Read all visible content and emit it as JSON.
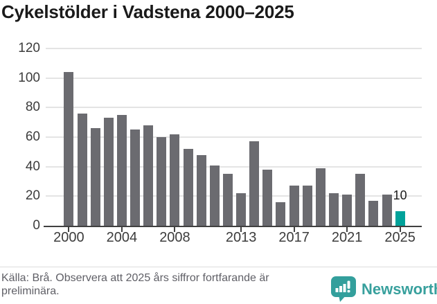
{
  "chart_data": {
    "type": "bar",
    "title": "Cykelstölder i Vadstena 2000–2025",
    "categories": [
      2000,
      2001,
      2002,
      2003,
      2004,
      2005,
      2006,
      2007,
      2008,
      2009,
      2010,
      2011,
      2012,
      2013,
      2014,
      2015,
      2016,
      2017,
      2018,
      2019,
      2020,
      2021,
      2022,
      2023,
      2024,
      2025
    ],
    "values": [
      104,
      76,
      66,
      73,
      75,
      65,
      68,
      60,
      62,
      52,
      48,
      41,
      35,
      22,
      57,
      38,
      16,
      27,
      27,
      39,
      22,
      21,
      35,
      17,
      21,
      10
    ],
    "xlabel": "",
    "ylabel": "",
    "ylim": [
      0,
      120
    ],
    "yticks": [
      0,
      20,
      40,
      60,
      80,
      100,
      120
    ],
    "xticks": [
      2000,
      2004,
      2008,
      2013,
      2017,
      2021,
      2025
    ],
    "grid": true,
    "legend_position": "none",
    "bar_color": "#6b6b70",
    "highlight": {
      "year": 2025,
      "value": 10,
      "label": "10",
      "color": "#00a29a"
    }
  },
  "footer": {
    "caption": "Källa: Brå. Observera att 2025 års siffror fortfarande är preliminära.",
    "brand": "Newsworthy",
    "brand_color": "#38a09d",
    "icon_color": "#339f9c"
  }
}
